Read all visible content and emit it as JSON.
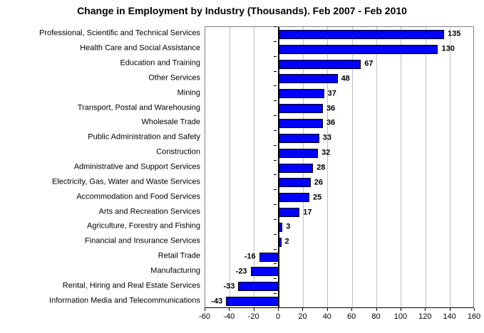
{
  "chart_data": {
    "type": "bar",
    "orientation": "horizontal",
    "title": "Change in Employment by Industry (Thousands). Feb 2007 - Feb 2010",
    "categories": [
      "Professional, Scientific and Technical Services",
      "Health Care and Social Assistance",
      "Education and Training",
      "Other Services",
      "Mining",
      "Transport, Postal and Warehousing",
      "Wholesale Trade",
      "Public Administration and Safety",
      "Construction",
      "Administrative and Support Services",
      "Electricity, Gas, Water and Waste Services",
      "Accommodation and Food Services",
      "Arts and Recreation Services",
      "Agriculture, Forestry and Fishing",
      "Financial and Insurance Services",
      "Retail Trade",
      "Manufacturing",
      "Rental, Hiring and Real Estate Services",
      "Information Media and Telecommunications"
    ],
    "values": [
      135,
      130,
      67,
      48,
      37,
      36,
      36,
      33,
      32,
      28,
      26,
      25,
      17,
      3,
      2,
      -16,
      -23,
      -33,
      -43
    ],
    "xlabel": "",
    "ylabel": "",
    "xlim": [
      -60,
      160
    ],
    "x_ticks": [
      -60,
      -40,
      -20,
      0,
      20,
      40,
      60,
      80,
      100,
      120,
      140,
      160
    ],
    "grid": "vertical",
    "legend": "none",
    "data_labels": "outside-end",
    "colors": {
      "bar_fill": "#0000FF",
      "bar_border": "#000000",
      "gridline": "#C0C0C0",
      "plot_border": "#808080",
      "axis": "#000000",
      "text": "#000000",
      "background": "#FFFFFF"
    }
  }
}
